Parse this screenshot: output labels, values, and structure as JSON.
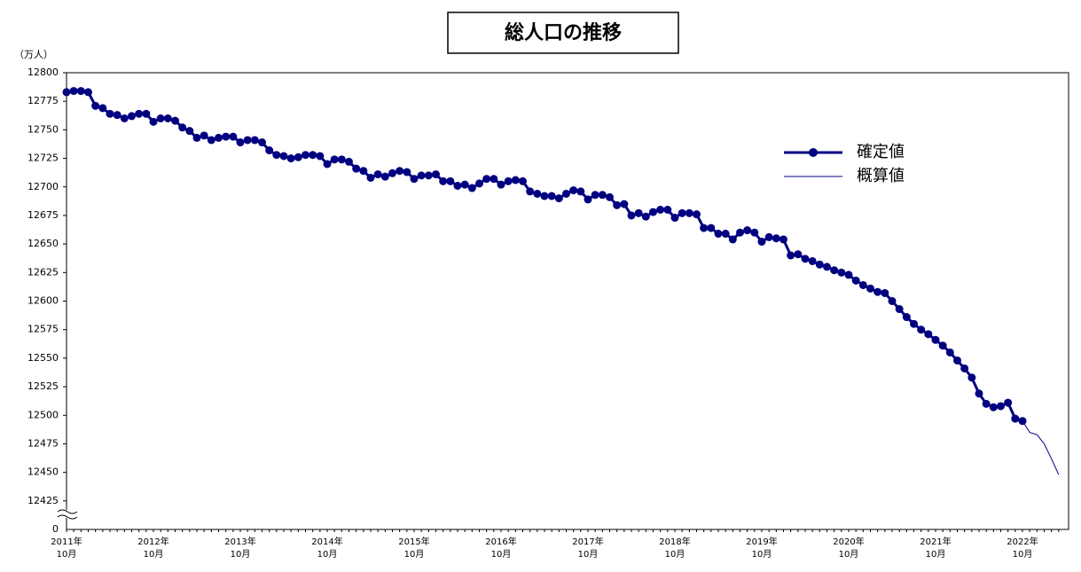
{
  "chart_data": {
    "type": "line",
    "title": "総人口の推移",
    "y_unit": "（万人）",
    "categories": [
      [
        "2011年",
        "10月"
      ],
      null,
      null,
      null,
      null,
      null,
      null,
      null,
      null,
      null,
      null,
      null,
      [
        "2012年",
        "10月"
      ],
      null,
      null,
      null,
      null,
      null,
      null,
      null,
      null,
      null,
      null,
      null,
      [
        "2013年",
        "10月"
      ],
      null,
      null,
      null,
      null,
      null,
      null,
      null,
      null,
      null,
      null,
      null,
      [
        "2014年",
        "10月"
      ],
      null,
      null,
      null,
      null,
      null,
      null,
      null,
      null,
      null,
      null,
      null,
      [
        "2015年",
        "10月"
      ],
      null,
      null,
      null,
      null,
      null,
      null,
      null,
      null,
      null,
      null,
      null,
      [
        "2016年",
        "10月"
      ],
      null,
      null,
      null,
      null,
      null,
      null,
      null,
      null,
      null,
      null,
      null,
      [
        "2017年",
        "10月"
      ],
      null,
      null,
      null,
      null,
      null,
      null,
      null,
      null,
      null,
      null,
      null,
      [
        "2018年",
        "10月"
      ],
      null,
      null,
      null,
      null,
      null,
      null,
      null,
      null,
      null,
      null,
      null,
      [
        "2019年",
        "10月"
      ],
      null,
      null,
      null,
      null,
      null,
      null,
      null,
      null,
      null,
      null,
      null,
      [
        "2020年",
        "10月"
      ],
      null,
      null,
      null,
      null,
      null,
      null,
      null,
      null,
      null,
      null,
      null,
      [
        "2021年",
        "10月"
      ],
      null,
      null,
      null,
      null,
      null,
      null,
      null,
      null,
      null,
      null,
      null,
      [
        "2022年",
        "10月"
      ],
      null,
      null,
      null,
      null,
      null
    ],
    "series": [
      {
        "name": "確定値",
        "color": "#000080",
        "markers": true,
        "values": [
          12783,
          12784,
          12784,
          12783,
          12771,
          12769,
          12764,
          12763,
          12760,
          12762,
          12764,
          12764,
          12757,
          12760,
          12760,
          12758,
          12752,
          12749,
          12743,
          12745,
          12741,
          12743,
          12744,
          12744,
          12739,
          12741,
          12741,
          12739,
          12732,
          12728,
          12727,
          12725,
          12726,
          12728,
          12728,
          12727,
          12720,
          12724,
          12724,
          12722,
          12716,
          12714,
          12708,
          12711,
          12709,
          12712,
          12714,
          12713,
          12707,
          12710,
          12710,
          12711,
          12705,
          12705,
          12701,
          12702,
          12699,
          12703,
          12707,
          12707,
          12702,
          12705,
          12706,
          12705,
          12696,
          12694,
          12692,
          12692,
          12690,
          12694,
          12697,
          12696,
          12689,
          12693,
          12693,
          12691,
          12684,
          12685,
          12675,
          12677,
          12674,
          12678,
          12680,
          12680,
          12673,
          12677,
          12677,
          12676,
          12664,
          12664,
          12659,
          12659,
          12654,
          12660,
          12662,
          12660,
          12652,
          12656,
          12655,
          12654,
          12640,
          12641,
          12637,
          12635,
          12632,
          12630,
          12627,
          12625,
          12623,
          12618,
          12614,
          12611,
          12608,
          12607,
          12600,
          12593,
          12586,
          12580,
          12575,
          12571,
          12566,
          12561,
          12555,
          12548,
          12541,
          12533,
          12519,
          12510,
          12507,
          12508,
          12511,
          12497,
          12495,
          null,
          null,
          null,
          null,
          null
        ]
      },
      {
        "name": "概算値",
        "color": "#000080",
        "markers": false,
        "values": [
          null,
          null,
          null,
          null,
          null,
          null,
          null,
          null,
          null,
          null,
          null,
          null,
          null,
          null,
          null,
          null,
          null,
          null,
          null,
          null,
          null,
          null,
          null,
          null,
          null,
          null,
          null,
          null,
          null,
          null,
          null,
          null,
          null,
          null,
          null,
          null,
          null,
          null,
          null,
          null,
          null,
          null,
          null,
          null,
          null,
          null,
          null,
          null,
          null,
          null,
          null,
          null,
          null,
          null,
          null,
          null,
          null,
          null,
          null,
          null,
          null,
          null,
          null,
          null,
          null,
          null,
          null,
          null,
          null,
          null,
          null,
          null,
          null,
          null,
          null,
          null,
          null,
          null,
          null,
          null,
          null,
          null,
          null,
          null,
          null,
          null,
          null,
          null,
          null,
          null,
          null,
          null,
          null,
          null,
          null,
          null,
          null,
          null,
          null,
          null,
          null,
          null,
          null,
          null,
          null,
          null,
          null,
          null,
          null,
          null,
          null,
          null,
          null,
          null,
          null,
          null,
          null,
          null,
          null,
          null,
          null,
          null,
          null,
          null,
          null,
          null,
          null,
          null,
          null,
          null,
          null,
          null,
          12495,
          12485,
          12483,
          12475,
          12462,
          12448
        ]
      }
    ],
    "ylim": [
      12400,
      12800
    ],
    "yticks": [
      12425,
      12450,
      12475,
      12500,
      12525,
      12550,
      12575,
      12600,
      12625,
      12650,
      12675,
      12700,
      12725,
      12750,
      12775,
      12800
    ],
    "y_break_tick": 0,
    "grid": false
  }
}
